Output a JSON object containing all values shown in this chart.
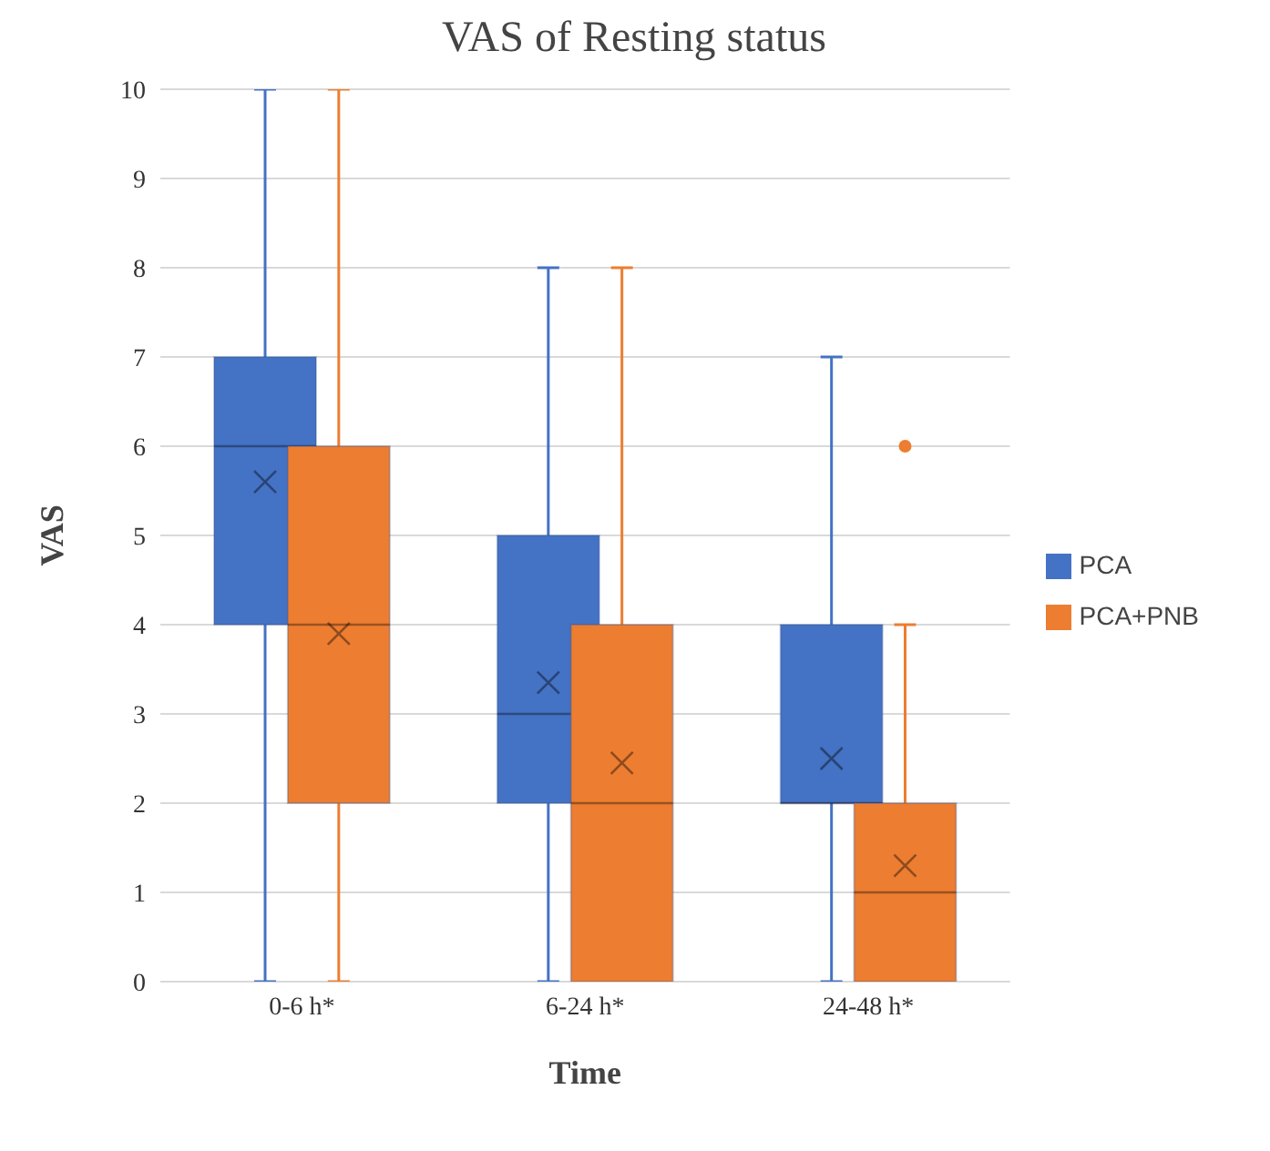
{
  "chart_data": {
    "type": "box",
    "title": "VAS of Resting status",
    "xlabel": "Time",
    "ylabel": "VAS",
    "categories": [
      "0-6 h*",
      "6-24 h*",
      "24-48 h*"
    ],
    "series": [
      {
        "name": "PCA",
        "color": "#4472c4",
        "boxes": [
          {
            "low": 0,
            "q1": 4,
            "median": 6,
            "q3": 7,
            "high": 10,
            "mean": 5.6
          },
          {
            "low": 0,
            "q1": 2,
            "median": 3,
            "q3": 5,
            "high": 8,
            "mean": 3.35
          },
          {
            "low": 0,
            "q1": 2,
            "median": 2,
            "q3": 4,
            "high": 7,
            "mean": 2.5
          }
        ]
      },
      {
        "name": "PCA+PNB",
        "color": "#ed7d31",
        "boxes": [
          {
            "low": 0,
            "q1": 2,
            "median": 4,
            "q3": 6,
            "high": 10,
            "mean": 3.9
          },
          {
            "low": 0,
            "q1": 0,
            "median": 2,
            "q3": 4,
            "high": 8,
            "mean": 2.45
          },
          {
            "low": 0,
            "q1": 0,
            "median": 1,
            "q3": 2,
            "high": 4,
            "mean": 1.3,
            "outliers": [
              6
            ]
          }
        ]
      }
    ],
    "ylim": [
      0,
      10
    ],
    "yticks": [
      0,
      1,
      2,
      3,
      4,
      5,
      6,
      7,
      8,
      9,
      10
    ],
    "grid": "y",
    "legend": "right"
  }
}
